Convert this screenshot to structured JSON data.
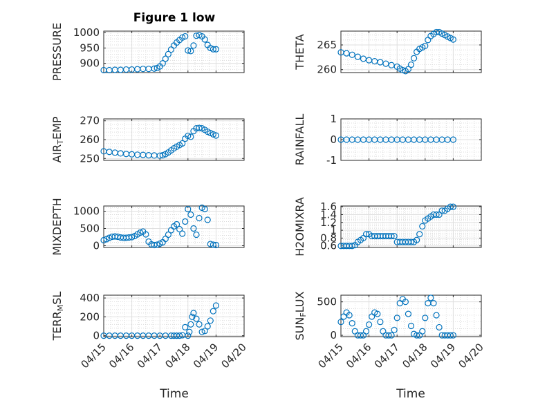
{
  "figure": {
    "title": "Figure 1 low",
    "x_axis": {
      "label": "Time",
      "ticks": [
        "04/15",
        "04/16",
        "04/17",
        "04/18",
        "04/19",
        "04/20"
      ]
    }
  },
  "chart_data": [
    {
      "type": "scatter",
      "name": "pressure",
      "column": 0,
      "row": 0,
      "ylabel_parts": [
        "PRESSURE"
      ],
      "ylim": [
        870,
        1005
      ],
      "yticks": [
        900,
        950,
        1000
      ],
      "ytick_labels": [
        "900",
        "950",
        "1000"
      ],
      "xlim": [
        0,
        5
      ],
      "x": [
        0.0,
        0.2,
        0.4,
        0.6,
        0.8,
        1.0,
        1.2,
        1.4,
        1.6,
        1.8,
        1.9,
        2.0,
        2.1,
        2.2,
        2.3,
        2.4,
        2.5,
        2.6,
        2.7,
        2.8,
        2.9,
        3.0,
        3.1,
        3.2,
        3.3,
        3.4,
        3.5,
        3.6,
        3.7,
        3.8,
        3.9,
        4.0
      ],
      "y": [
        878,
        878,
        879,
        879,
        880,
        880,
        881,
        882,
        882,
        883,
        885,
        890,
        900,
        915,
        930,
        945,
        958,
        968,
        976,
        984,
        988,
        942,
        940,
        958,
        990,
        992,
        988,
        978,
        960,
        950,
        946,
        946
      ]
    },
    {
      "type": "scatter",
      "name": "theta",
      "column": 1,
      "row": 0,
      "ylabel_parts": [
        "THETA"
      ],
      "ylim": [
        259.4,
        267.8
      ],
      "yticks": [
        260,
        265
      ],
      "ytick_labels": [
        "260",
        "265"
      ],
      "xlim": [
        0,
        5
      ],
      "x": [
        0.0,
        0.2,
        0.4,
        0.6,
        0.8,
        1.0,
        1.2,
        1.4,
        1.6,
        1.8,
        2.0,
        2.1,
        2.2,
        2.3,
        2.4,
        2.5,
        2.6,
        2.7,
        2.8,
        2.9,
        3.0,
        3.1,
        3.2,
        3.3,
        3.4,
        3.5,
        3.6,
        3.7,
        3.8,
        3.9,
        4.0
      ],
      "y": [
        263.5,
        263.3,
        263.0,
        262.6,
        262.2,
        261.9,
        261.7,
        261.5,
        261.2,
        260.9,
        260.6,
        260.2,
        259.9,
        259.7,
        260.1,
        261.0,
        262.3,
        263.6,
        264.2,
        264.5,
        264.8,
        266.0,
        266.8,
        267.2,
        267.6,
        267.6,
        267.3,
        267.0,
        266.7,
        266.4,
        266.1
      ]
    },
    {
      "type": "scatter",
      "name": "air-temp",
      "column": 0,
      "row": 1,
      "ylabel_parts": [
        "AIR",
        "T",
        "EMP"
      ],
      "ylim": [
        249,
        271
      ],
      "yticks": [
        250,
        260,
        270
      ],
      "ytick_labels": [
        "250",
        "260",
        "270"
      ],
      "xlim": [
        0,
        5
      ],
      "x": [
        0.0,
        0.2,
        0.4,
        0.6,
        0.8,
        1.0,
        1.2,
        1.4,
        1.6,
        1.8,
        2.0,
        2.1,
        2.2,
        2.3,
        2.4,
        2.5,
        2.6,
        2.7,
        2.8,
        2.9,
        3.0,
        3.1,
        3.2,
        3.3,
        3.4,
        3.5,
        3.6,
        3.7,
        3.8,
        3.9,
        4.0
      ],
      "y": [
        253.8,
        253.5,
        253.1,
        252.7,
        252.4,
        252.2,
        252.0,
        251.9,
        251.7,
        251.6,
        251.5,
        251.7,
        252.3,
        253.2,
        254.3,
        255.4,
        256.3,
        257.1,
        258.0,
        260.5,
        262.0,
        261.5,
        264.5,
        266.0,
        266.2,
        266.0,
        265.2,
        264.2,
        263.5,
        262.8,
        262.2
      ]
    },
    {
      "type": "scatter",
      "name": "rainfall",
      "column": 1,
      "row": 1,
      "ylabel_parts": [
        "RAINFALL"
      ],
      "ylim": [
        -1,
        1
      ],
      "yticks": [
        -1,
        0,
        1
      ],
      "ytick_labels": [
        "-1",
        "0",
        "1"
      ],
      "xlim": [
        0,
        5
      ],
      "x": [
        0.0,
        0.2,
        0.4,
        0.6,
        0.8,
        1.0,
        1.2,
        1.4,
        1.6,
        1.8,
        2.0,
        2.2,
        2.4,
        2.6,
        2.8,
        3.0,
        3.2,
        3.4,
        3.6,
        3.8,
        4.0
      ],
      "y": [
        0,
        0,
        0,
        0,
        0,
        0,
        0,
        0,
        0,
        0,
        0,
        0,
        0,
        0,
        0,
        0,
        0,
        0,
        0,
        0,
        0
      ]
    },
    {
      "type": "scatter",
      "name": "mixdepth",
      "column": 0,
      "row": 2,
      "ylabel_parts": [
        "MIXDEPTH"
      ],
      "ylim": [
        -50,
        1150
      ],
      "yticks": [
        0,
        500,
        1000
      ],
      "ytick_labels": [
        "0",
        "500",
        "1000"
      ],
      "xlim": [
        0,
        5
      ],
      "x": [
        0.0,
        0.1,
        0.2,
        0.3,
        0.4,
        0.5,
        0.6,
        0.7,
        0.8,
        0.9,
        1.0,
        1.1,
        1.2,
        1.3,
        1.4,
        1.5,
        1.6,
        1.7,
        1.8,
        1.9,
        2.0,
        2.1,
        2.2,
        2.3,
        2.4,
        2.5,
        2.6,
        2.7,
        2.8,
        2.9,
        3.0,
        3.1,
        3.2,
        3.3,
        3.4,
        3.5,
        3.6,
        3.7,
        3.8,
        3.9,
        4.0
      ],
      "y": [
        160,
        190,
        230,
        260,
        270,
        260,
        240,
        230,
        230,
        240,
        250,
        280,
        330,
        380,
        410,
        330,
        120,
        40,
        20,
        30,
        60,
        100,
        200,
        320,
        450,
        560,
        620,
        480,
        350,
        700,
        1060,
        900,
        500,
        320,
        800,
        1100,
        1060,
        750,
        50,
        30,
        20
      ]
    },
    {
      "type": "scatter",
      "name": "h2omixra",
      "column": 1,
      "row": 2,
      "ylabel_parts": [
        "H2OMIXRA"
      ],
      "ylim": [
        0.56,
        1.62
      ],
      "yticks": [
        0.6,
        0.8,
        1.0,
        1.2,
        1.4,
        1.6
      ],
      "ytick_labels": [
        "0.6",
        "0.8",
        "1",
        "1.2",
        "1.4",
        "1.6"
      ],
      "xlim": [
        0,
        5
      ],
      "x": [
        0.0,
        0.1,
        0.2,
        0.3,
        0.4,
        0.5,
        0.6,
        0.7,
        0.8,
        0.9,
        1.0,
        1.1,
        1.2,
        1.3,
        1.4,
        1.5,
        1.6,
        1.7,
        1.8,
        1.9,
        2.0,
        2.1,
        2.2,
        2.3,
        2.4,
        2.5,
        2.6,
        2.7,
        2.8,
        2.9,
        3.0,
        3.1,
        3.2,
        3.3,
        3.4,
        3.5,
        3.6,
        3.7,
        3.8,
        3.9,
        4.0
      ],
      "y": [
        0.6,
        0.6,
        0.6,
        0.6,
        0.6,
        0.62,
        0.7,
        0.75,
        0.8,
        0.9,
        0.9,
        0.85,
        0.85,
        0.85,
        0.85,
        0.85,
        0.85,
        0.85,
        0.85,
        0.85,
        0.7,
        0.7,
        0.7,
        0.7,
        0.7,
        0.7,
        0.7,
        0.75,
        0.9,
        1.1,
        1.25,
        1.3,
        1.35,
        1.4,
        1.4,
        1.4,
        1.5,
        1.5,
        1.55,
        1.6,
        1.6
      ]
    },
    {
      "type": "scatter",
      "name": "terr-msl",
      "column": 0,
      "row": 3,
      "ylabel_parts": [
        "TERR",
        "M",
        "SL"
      ],
      "ylim": [
        -10,
        430
      ],
      "yticks": [
        0,
        200,
        400
      ],
      "ytick_labels": [
        "0",
        "200",
        "400"
      ],
      "xlim": [
        0,
        5
      ],
      "x": [
        0.0,
        0.2,
        0.4,
        0.6,
        0.8,
        1.0,
        1.2,
        1.4,
        1.6,
        1.8,
        2.0,
        2.2,
        2.4,
        2.5,
        2.6,
        2.7,
        2.8,
        2.9,
        3.0,
        3.05,
        3.1,
        3.15,
        3.2,
        3.3,
        3.4,
        3.5,
        3.6,
        3.7,
        3.8,
        3.9,
        4.0
      ],
      "y": [
        0,
        0,
        0,
        0,
        0,
        0,
        0,
        0,
        0,
        0,
        0,
        0,
        0,
        0,
        0,
        0,
        5,
        90,
        0,
        40,
        120,
        200,
        240,
        180,
        120,
        40,
        50,
        100,
        160,
        260,
        320
      ]
    },
    {
      "type": "scatter",
      "name": "sun-flux",
      "column": 1,
      "row": 3,
      "ylabel_parts": [
        "SUN",
        "F",
        "LUX"
      ],
      "ylim": [
        -20,
        600
      ],
      "yticks": [
        0,
        500
      ],
      "ytick_labels": [
        "0",
        "500"
      ],
      "xlim": [
        0,
        5
      ],
      "x": [
        0.0,
        0.1,
        0.2,
        0.3,
        0.4,
        0.5,
        0.6,
        0.7,
        0.8,
        0.9,
        1.0,
        1.1,
        1.2,
        1.3,
        1.4,
        1.5,
        1.6,
        1.7,
        1.8,
        1.9,
        2.0,
        2.1,
        2.2,
        2.3,
        2.4,
        2.5,
        2.6,
        2.7,
        2.8,
        2.9,
        3.0,
        3.1,
        3.2,
        3.3,
        3.4,
        3.5,
        3.6,
        3.7,
        3.8,
        3.9,
        4.0
      ],
      "y": [
        200,
        280,
        340,
        300,
        180,
        60,
        0,
        0,
        0,
        60,
        160,
        280,
        340,
        320,
        200,
        60,
        0,
        0,
        0,
        80,
        260,
        480,
        540,
        500,
        320,
        140,
        20,
        0,
        0,
        60,
        260,
        480,
        560,
        480,
        300,
        120,
        0,
        0,
        0,
        0,
        0
      ]
    }
  ]
}
